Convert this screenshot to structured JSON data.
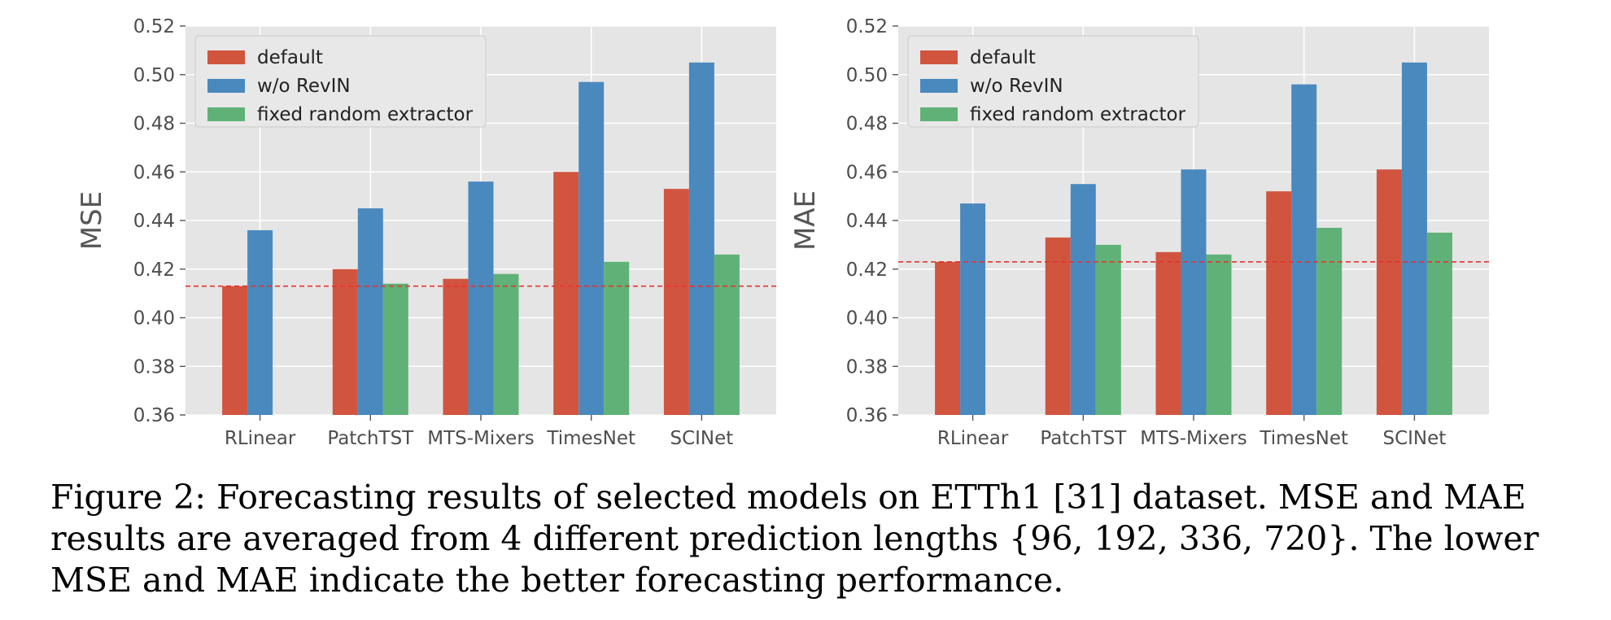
{
  "figure": {
    "caption": "Figure 2: Forecasting results of selected models on ETTh1 [31] dataset. MSE and MAE results are averaged from 4 different prediction lengths {96, 192, 336, 720}. The lower MSE and MAE indicate the better forecasting performance."
  },
  "colors": {
    "default": "#D1543F",
    "wo_revin": "#4A89BE",
    "fixed_random_extractor": "#60B177",
    "baseline_line": "#E3342F",
    "panel_background": "#E5E5E5",
    "grid": "#FFFFFF"
  },
  "chart_data": [
    {
      "type": "bar",
      "title": "",
      "xlabel": "",
      "ylabel": "MSE",
      "ylim": [
        0.36,
        0.52
      ],
      "yticks": [
        "0.36",
        "0.38",
        "0.40",
        "0.42",
        "0.44",
        "0.46",
        "0.48",
        "0.50",
        "0.52"
      ],
      "grid": true,
      "legend": "top-left",
      "categories": [
        "RLinear",
        "PatchTST",
        "MTS-Mixers",
        "TimesNet",
        "SCINet"
      ],
      "series": [
        {
          "name": "default",
          "values": [
            0.413,
            0.42,
            0.416,
            0.46,
            0.453
          ]
        },
        {
          "name": "w/o RevIN",
          "values": [
            0.436,
            0.445,
            0.456,
            0.497,
            0.505
          ]
        },
        {
          "name": "fixed random extractor",
          "values": [
            null,
            0.414,
            0.418,
            0.423,
            0.426
          ]
        }
      ],
      "reference_line": {
        "y": 0.413,
        "style": "dashed"
      }
    },
    {
      "type": "bar",
      "title": "",
      "xlabel": "",
      "ylabel": "MAE",
      "ylim": [
        0.36,
        0.52
      ],
      "yticks": [
        "0.36",
        "0.38",
        "0.40",
        "0.42",
        "0.44",
        "0.46",
        "0.48",
        "0.50",
        "0.52"
      ],
      "grid": true,
      "legend": "top-left",
      "categories": [
        "RLinear",
        "PatchTST",
        "MTS-Mixers",
        "TimesNet",
        "SCINet"
      ],
      "series": [
        {
          "name": "default",
          "values": [
            0.423,
            0.433,
            0.427,
            0.452,
            0.461
          ]
        },
        {
          "name": "w/o RevIN",
          "values": [
            0.447,
            0.455,
            0.461,
            0.496,
            0.505
          ]
        },
        {
          "name": "fixed random extractor",
          "values": [
            null,
            0.43,
            0.426,
            0.437,
            0.435
          ]
        }
      ],
      "reference_line": {
        "y": 0.423,
        "style": "dashed"
      }
    }
  ]
}
